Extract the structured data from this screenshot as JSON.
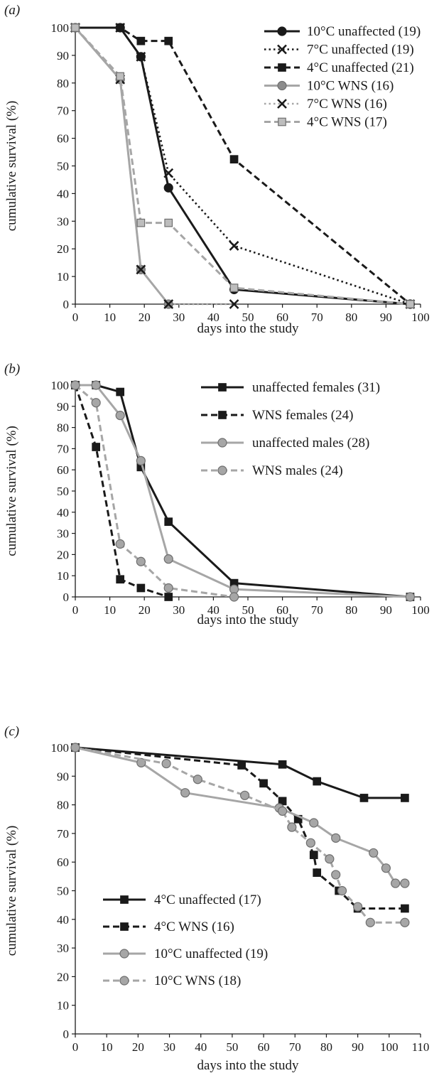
{
  "chart_data": [
    {
      "type": "line",
      "panel_label": "(a)",
      "xlabel": "days into the study",
      "ylabel": "cumulative survival (%)",
      "xlim": [
        0,
        100
      ],
      "ylim": [
        0,
        100
      ],
      "x_ticks": [
        0,
        10,
        20,
        30,
        40,
        50,
        60,
        70,
        80,
        90,
        100
      ],
      "y_ticks": [
        0,
        10,
        20,
        30,
        40,
        50,
        60,
        70,
        80,
        90,
        100
      ],
      "grid": false,
      "legend_position": "top-right",
      "series": [
        {
          "name": "10°C unaffected (19)",
          "color": "#1a1a1a",
          "dash": "solid",
          "marker": "circle",
          "marker_fill": "#1a1a1a",
          "x": [
            0,
            13,
            19,
            27,
            46,
            97
          ],
          "y": [
            100,
            100,
            89.5,
            42.1,
            5.3,
            0
          ]
        },
        {
          "name": "7°C unaffected (19)",
          "color": "#1a1a1a",
          "dash": "dotted",
          "marker": "x",
          "marker_fill": "#1a1a1a",
          "x": [
            0,
            13,
            19,
            27,
            46,
            97
          ],
          "y": [
            100,
            100,
            89.5,
            47.4,
            21.1,
            0
          ]
        },
        {
          "name": "4°C unaffected (21)",
          "color": "#1a1a1a",
          "dash": "dashed",
          "marker": "square",
          "marker_fill": "#1a1a1a",
          "x": [
            0,
            13,
            19,
            27,
            46,
            97
          ],
          "y": [
            100,
            100,
            95.2,
            95.2,
            52.4,
            0
          ]
        },
        {
          "name": "10°C WNS (16)",
          "color": "#a6a6a6",
          "dash": "solid",
          "marker": "circle",
          "marker_fill": "#8c8c8c",
          "x": [
            0,
            13,
            19,
            27
          ],
          "y": [
            100,
            81.3,
            12.5,
            0
          ]
        },
        {
          "name": "7°C WNS (16)",
          "color": "#a6a6a6",
          "dash": "dotted",
          "marker": "x",
          "marker_fill": "#1a1a1a",
          "x": [
            0,
            13,
            19,
            27,
            46
          ],
          "y": [
            100,
            81.3,
            12.5,
            0,
            0
          ]
        },
        {
          "name": "4°C WNS (17)",
          "color": "#a6a6a6",
          "dash": "dashed",
          "marker": "square",
          "marker_fill": "#bdbdbd",
          "x": [
            0,
            13,
            19,
            27,
            46,
            97
          ],
          "y": [
            100,
            82.4,
            29.4,
            29.4,
            5.9,
            0
          ]
        }
      ]
    },
    {
      "type": "line",
      "panel_label": "(b)",
      "xlabel": "days into the study",
      "ylabel": "cumulative survival (%)",
      "xlim": [
        0,
        100
      ],
      "ylim": [
        0,
        100
      ],
      "x_ticks": [
        0,
        10,
        20,
        30,
        40,
        50,
        60,
        70,
        80,
        90,
        100
      ],
      "y_ticks": [
        0,
        10,
        20,
        30,
        40,
        50,
        60,
        70,
        80,
        90,
        100
      ],
      "grid": false,
      "legend_position": "top-right",
      "series": [
        {
          "name": "unaffected females (31)",
          "color": "#1a1a1a",
          "dash": "solid",
          "marker": "square",
          "marker_fill": "#1a1a1a",
          "x": [
            0,
            6,
            13,
            19,
            27,
            46,
            97
          ],
          "y": [
            100,
            100,
            96.8,
            61.3,
            35.5,
            6.5,
            0
          ]
        },
        {
          "name": "WNS females (24)",
          "color": "#1a1a1a",
          "dash": "dashed",
          "marker": "square",
          "marker_fill": "#1a1a1a",
          "x": [
            0,
            6,
            13,
            19,
            27
          ],
          "y": [
            100,
            70.8,
            8.3,
            4.2,
            0
          ]
        },
        {
          "name": "unaffected males (28)",
          "color": "#a6a6a6",
          "dash": "solid",
          "marker": "circle",
          "marker_fill": "#a6a6a6",
          "x": [
            0,
            6,
            13,
            19,
            27,
            46,
            97
          ],
          "y": [
            100,
            100,
            85.7,
            64.3,
            17.9,
            3.6,
            0
          ]
        },
        {
          "name": "WNS males (24)",
          "color": "#a6a6a6",
          "dash": "dashed",
          "marker": "circle",
          "marker_fill": "#a6a6a6",
          "x": [
            0,
            6,
            13,
            19,
            27,
            46
          ],
          "y": [
            100,
            91.7,
            25,
            16.7,
            4.2,
            0
          ]
        }
      ]
    },
    {
      "type": "line",
      "panel_label": "(c)",
      "xlabel": "days into the study",
      "ylabel": "cumulative survival (%)",
      "xlim": [
        0,
        110
      ],
      "ylim": [
        0,
        100
      ],
      "x_ticks": [
        0,
        10,
        20,
        30,
        40,
        50,
        60,
        70,
        80,
        90,
        100,
        110
      ],
      "y_ticks": [
        0,
        10,
        20,
        30,
        40,
        50,
        60,
        70,
        80,
        90,
        100
      ],
      "grid": false,
      "legend_position": "bottom-left",
      "series": [
        {
          "name": "4°C unaffected (17)",
          "color": "#1a1a1a",
          "dash": "solid",
          "marker": "square",
          "marker_fill": "#1a1a1a",
          "x": [
            0,
            66,
            77,
            92,
            105
          ],
          "y": [
            100,
            94.1,
            88.2,
            82.4,
            82.4
          ]
        },
        {
          "name": "4°C WNS (16)",
          "color": "#1a1a1a",
          "dash": "dashed",
          "marker": "square",
          "marker_fill": "#1a1a1a",
          "x": [
            0,
            53,
            60,
            66,
            71,
            76,
            77,
            84,
            90,
            105
          ],
          "y": [
            100,
            93.8,
            87.5,
            81.3,
            75,
            62.5,
            56.3,
            50,
            43.8,
            43.8
          ]
        },
        {
          "name": "10°C unaffected (19)",
          "color": "#a6a6a6",
          "dash": "solid",
          "marker": "circle",
          "marker_fill": "#a6a6a6",
          "x": [
            0,
            21,
            35,
            65,
            76,
            83,
            95,
            99,
            102,
            105
          ],
          "y": [
            100,
            94.7,
            84.2,
            78.9,
            73.7,
            68.4,
            63.2,
            57.9,
            52.6,
            52.6
          ]
        },
        {
          "name": "10°C WNS (18)",
          "color": "#a6a6a6",
          "dash": "dashed",
          "marker": "circle",
          "marker_fill": "#a6a6a6",
          "x": [
            0,
            29,
            39,
            54,
            66,
            69,
            75,
            81,
            83,
            85,
            90,
            94,
            105
          ],
          "y": [
            100,
            94.4,
            88.9,
            83.3,
            77.8,
            72.2,
            66.7,
            61.1,
            55.6,
            50,
            44.4,
            38.9,
            38.9
          ]
        }
      ]
    }
  ]
}
